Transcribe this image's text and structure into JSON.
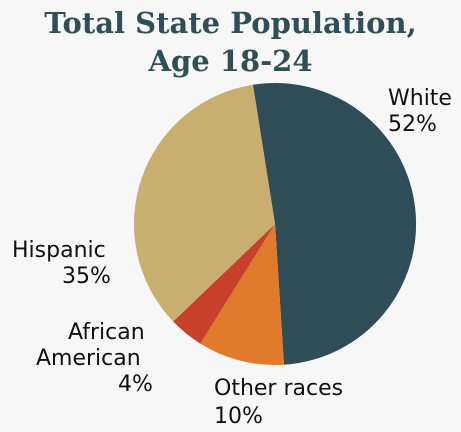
{
  "chart_data": {
    "type": "pie",
    "title_lines": [
      "Total State Population,",
      "Age 18-24"
    ],
    "slices": [
      {
        "name": "White",
        "value": 52,
        "label": "52%",
        "color": "#2e4d57"
      },
      {
        "name": "Other races",
        "value": 10,
        "label": "10%",
        "color": "#e07b2c"
      },
      {
        "name": "African American",
        "value": 4,
        "label": "4%",
        "color": "#c9402a"
      },
      {
        "name": "Hispanic",
        "value": 35,
        "label": "35%",
        "color": "#c8ae6f"
      }
    ],
    "slice_labels": {
      "white_name": "White",
      "hispanic_name": "Hispanic",
      "african_line1": "African",
      "african_line2": "American",
      "other_name": "Other races"
    }
  }
}
